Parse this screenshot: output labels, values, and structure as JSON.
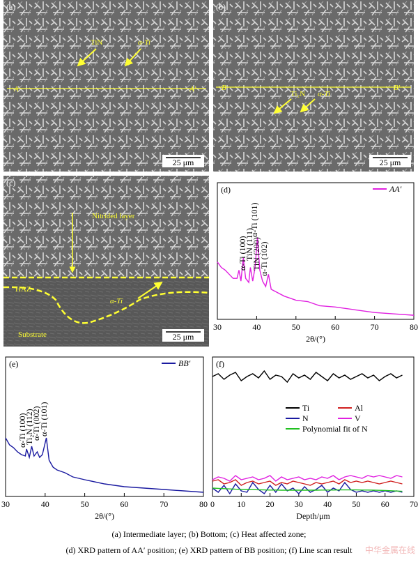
{
  "panels": [
    {
      "label": "(a)",
      "annotations": [
        "TiN",
        "α-Ti"
      ],
      "line_labels": [
        "A",
        "A′"
      ],
      "scale_bar": "25 μm"
    },
    {
      "label": "(b)",
      "annotations": [
        "Ti₂N",
        "α-Ti"
      ],
      "line_labels": [
        "B",
        "B′"
      ],
      "scale_bar": "25 μm"
    },
    {
      "label": "(c)",
      "annotations": [
        "Nitrided layer",
        "HAZ",
        "α-Ti",
        "Substrate"
      ],
      "scale_bar": "25 μm"
    }
  ],
  "chart_data": [
    {
      "type": "line",
      "label": "(d)",
      "x_label": "2θ/(°)",
      "xlim": [
        30,
        80
      ],
      "xticks": [
        30,
        40,
        50,
        60,
        70,
        80
      ],
      "ylim": [
        0,
        100
      ],
      "annotations": [
        "α-Ti (100)",
        "TiN (111)",
        "TiN (200)",
        "α-Ti (101)",
        "α-Ti (102)"
      ],
      "x": [
        30,
        31,
        32,
        33,
        34,
        35,
        35.5,
        36,
        36.6,
        37.2,
        38,
        38.4,
        39,
        39.6,
        40.2,
        40.8,
        41.5,
        42.3,
        43,
        43.7,
        45,
        47,
        50,
        53,
        56,
        60,
        65,
        70,
        75,
        80
      ],
      "series": [
        {
          "name": "AA′",
          "color": "#e020e0",
          "values": [
            42,
            38,
            36,
            33,
            30,
            30,
            36,
            28,
            45,
            30,
            27,
            38,
            28,
            38,
            60,
            36,
            28,
            24,
            33,
            22,
            20,
            17,
            14,
            13,
            10,
            9,
            7,
            5,
            4,
            3
          ]
        }
      ]
    },
    {
      "type": "line",
      "label": "(e)",
      "x_label": "2θ/(°)",
      "xlim": [
        30,
        80
      ],
      "xticks": [
        30,
        40,
        50,
        60,
        70,
        80
      ],
      "ylim": [
        0,
        100
      ],
      "annotations": [
        "α-Ti (100)",
        "Ti₂N (112)",
        "α-Ti (002)",
        "α-Ti (101)"
      ],
      "x": [
        30,
        31,
        32,
        33,
        34,
        35,
        35.3,
        36,
        36.6,
        37.2,
        38,
        38.6,
        39.3,
        40.3,
        41,
        42,
        43,
        45,
        47,
        50,
        55,
        60,
        65,
        70,
        75,
        80
      ],
      "series": [
        {
          "name": "BB′",
          "color": "#1a1aa0",
          "values": [
            42,
            37,
            35,
            32,
            30,
            29,
            34,
            28,
            36,
            29,
            32,
            28,
            30,
            42,
            26,
            21,
            19,
            17,
            14,
            12,
            9,
            7,
            6,
            5,
            4,
            3
          ]
        }
      ]
    },
    {
      "type": "line",
      "label": "(f)",
      "x_label": "Depth/μm",
      "xlim": [
        0,
        70
      ],
      "xticks": [
        0,
        10,
        20,
        30,
        40,
        50,
        60,
        70
      ],
      "ylim": [
        0,
        100
      ],
      "x": [
        0,
        2,
        4,
        6,
        8,
        10,
        12,
        14,
        16,
        18,
        20,
        22,
        24,
        26,
        28,
        30,
        32,
        34,
        36,
        38,
        40,
        42,
        44,
        46,
        48,
        50,
        52,
        54,
        56,
        58,
        60,
        62,
        64,
        66
      ],
      "series": [
        {
          "name": "Ti",
          "color": "#000000",
          "values": [
            86,
            88,
            84,
            87,
            89,
            83,
            86,
            88,
            85,
            90,
            84,
            87,
            86,
            82,
            88,
            85,
            87,
            84,
            89,
            86,
            83,
            88,
            85,
            87,
            84,
            86,
            88,
            85,
            87,
            83,
            86,
            88,
            85,
            87
          ]
        },
        {
          "name": "Al",
          "color": "#d02020",
          "values": [
            11,
            12,
            9,
            10,
            12,
            8,
            10,
            11,
            9,
            10,
            11,
            8,
            10,
            9,
            11,
            10,
            9,
            8,
            10,
            9,
            10,
            11,
            9,
            12,
            10,
            11,
            10,
            11,
            10,
            9,
            10,
            11,
            10,
            9
          ]
        },
        {
          "name": "N",
          "color": "#1a1aa0",
          "values": [
            6,
            3,
            8,
            2,
            9,
            4,
            3,
            10,
            5,
            2,
            8,
            3,
            9,
            4,
            6,
            2,
            7,
            3,
            5,
            8,
            3,
            6,
            4,
            10,
            5,
            3,
            4,
            3,
            4,
            3,
            4,
            3,
            4,
            3
          ]
        },
        {
          "name": "V",
          "color": "#e020e0",
          "values": [
            12,
            14,
            13,
            11,
            15,
            12,
            13,
            14,
            12,
            13,
            15,
            11,
            14,
            12,
            13,
            14,
            12,
            13,
            12,
            14,
            13,
            15,
            12,
            14,
            15,
            14,
            13,
            15,
            14,
            15,
            14,
            13,
            15,
            14
          ]
        },
        {
          "name": "Polynomial fit of N",
          "color": "#20c020",
          "values": [
            6,
            5.8,
            5.6,
            5.4,
            5.2,
            5.1,
            5,
            4.9,
            4.8,
            4.7,
            4.6,
            4.6,
            4.5,
            4.5,
            4.5,
            4.5,
            4.5,
            4.5,
            4.5,
            4.6,
            4.6,
            4.6,
            4.7,
            4.7,
            4.7,
            4.7,
            4.6,
            4.6,
            4.5,
            4.4,
            4.3,
            4.1,
            3.9,
            3.7
          ]
        }
      ]
    }
  ],
  "caption": [
    "(a) Intermediate layer; (b) Bottom; (c) Heat affected zone;",
    "(d) XRD pattern of AA′ position; (e) XRD pattern of BB position; (f) Line scan result"
  ],
  "watermark": "中华金属在线"
}
